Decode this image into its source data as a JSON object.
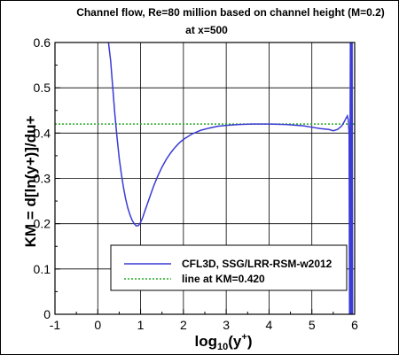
{
  "chart_data": {
    "type": "line",
    "title": "Channel flow, Re=80 million based on channel height (M=0.2)",
    "subtitle": "at x=500",
    "xlabel_main": "log",
    "xlabel_sub": "10",
    "xlabel_rest": "(y",
    "xlabel_sup": "+",
    "xlabel_end": ")",
    "ylabel": "KM = d[ln(y+)]/du+",
    "xlim": [
      -1,
      6
    ],
    "ylim": [
      0,
      0.6
    ],
    "x_ticks": [
      "-1",
      "0",
      "1",
      "2",
      "3",
      "4",
      "5",
      "6"
    ],
    "y_ticks": [
      "0",
      "0.1",
      "0.2",
      "0.3",
      "0.4",
      "0.5",
      "0.6"
    ],
    "grid": true,
    "legend_position": "lower-right",
    "series": [
      {
        "name": "CFL3D, SSG/LRR-RSM-w2012",
        "color": "#3a3ad6",
        "style": "solid",
        "x": [
          0.25,
          0.3,
          0.35,
          0.4,
          0.45,
          0.5,
          0.55,
          0.6,
          0.65,
          0.7,
          0.75,
          0.8,
          0.85,
          0.9,
          0.95,
          1.0,
          1.05,
          1.1,
          1.2,
          1.3,
          1.4,
          1.5,
          1.6,
          1.7,
          1.8,
          1.9,
          2.0,
          2.2,
          2.4,
          2.6,
          2.8,
          3.0,
          3.3,
          3.6,
          4.0,
          4.4,
          4.8,
          5.0,
          5.2,
          5.4,
          5.5,
          5.6,
          5.7,
          5.75,
          5.8,
          5.83,
          5.85,
          5.87,
          5.88,
          5.9,
          5.91,
          5.92,
          5.93,
          5.94,
          5.95
        ],
        "y": [
          0.6,
          0.56,
          0.5,
          0.44,
          0.39,
          0.345,
          0.31,
          0.28,
          0.255,
          0.235,
          0.22,
          0.208,
          0.2,
          0.195,
          0.196,
          0.203,
          0.214,
          0.228,
          0.255,
          0.282,
          0.305,
          0.325,
          0.342,
          0.356,
          0.368,
          0.378,
          0.386,
          0.398,
          0.406,
          0.411,
          0.415,
          0.417,
          0.419,
          0.42,
          0.42,
          0.419,
          0.416,
          0.413,
          0.41,
          0.408,
          0.405,
          0.408,
          0.416,
          0.424,
          0.433,
          0.438,
          0.43,
          0.4,
          0.0,
          0.6,
          0.0,
          0.6,
          0.0,
          0.6,
          0.0
        ]
      },
      {
        "name": "line at KM=0.420",
        "color": "#22aa22",
        "style": "dotted",
        "x": [
          -1,
          6
        ],
        "y": [
          0.42,
          0.42
        ]
      }
    ]
  }
}
